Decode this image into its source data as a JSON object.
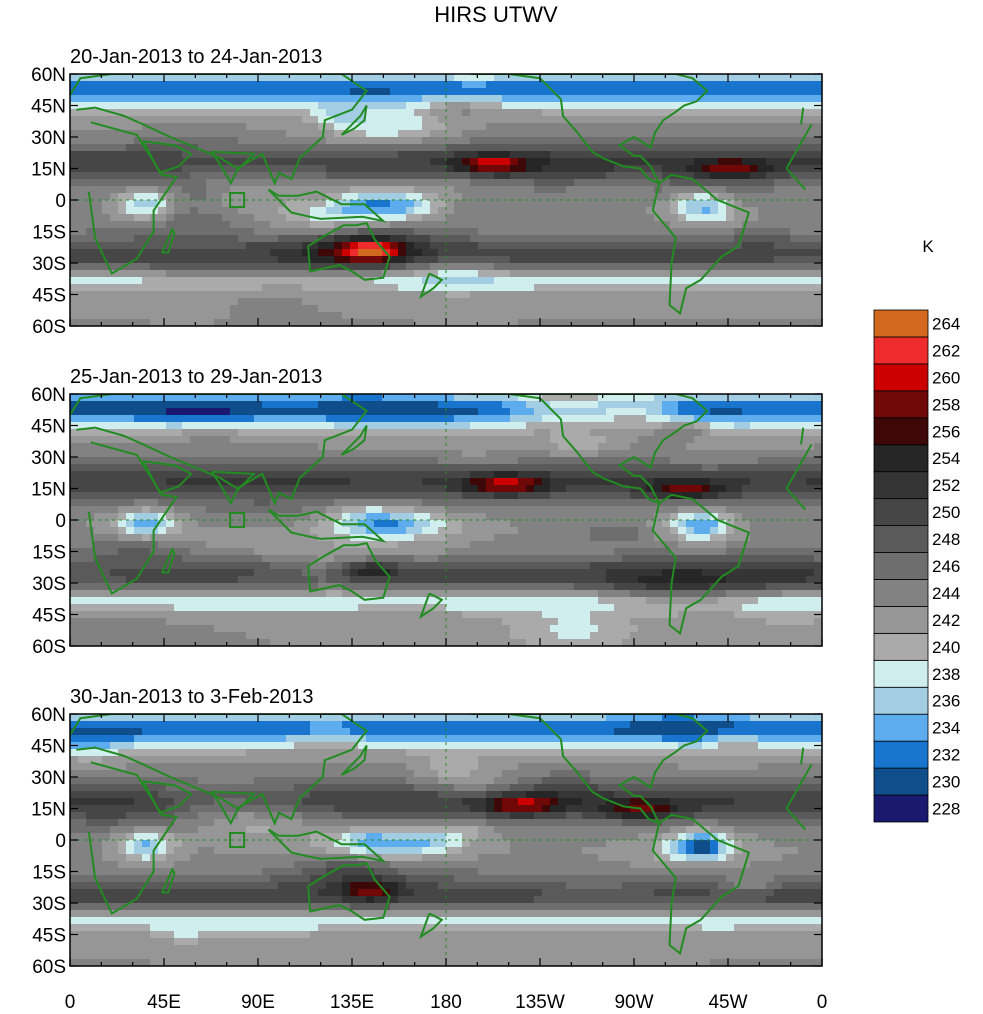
{
  "figure": {
    "title": "HIRS UTWV",
    "units": "K"
  },
  "panels": [
    {
      "label": "20-Jan-2013 to 24-Jan-2013"
    },
    {
      "label": "25-Jan-2013 to 29-Jan-2013"
    },
    {
      "label": "30-Jan-2013 to 3-Feb-2013"
    }
  ],
  "axes": {
    "lat_ticks": [
      "60N",
      "45N",
      "30N",
      "15N",
      "0",
      "15S",
      "30S",
      "45S",
      "60S"
    ],
    "lon_ticks": [
      "0",
      "45E",
      "90E",
      "135E",
      "180",
      "135W",
      "90W",
      "45W",
      "0"
    ]
  },
  "colorbar": {
    "levels": [
      228,
      230,
      232,
      234,
      236,
      238,
      240,
      242,
      244,
      246,
      248,
      250,
      252,
      254,
      256,
      258,
      260,
      262,
      264
    ],
    "label_values": [
      "228",
      "230",
      "232",
      "234",
      "236",
      "238",
      "240",
      "242",
      "244",
      "246",
      "248",
      "250",
      "252",
      "254",
      "256",
      "258",
      "260",
      "262",
      "264"
    ],
    "colors": [
      "#191970",
      "#104E8B",
      "#1874CD",
      "#5CACEE",
      "#A2CDE3",
      "#D1EEEE",
      "#AAAAAA",
      "#969696",
      "#828282",
      "#6E6E6E",
      "#5A5A5A",
      "#464646",
      "#353535",
      "#262626",
      "#3E0808",
      "#700808",
      "#CD0000",
      "#EE2C2C",
      "#D2691E"
    ]
  },
  "map_style": {
    "coast_color": "#228B22",
    "grid_style": "dashed equator and dateline"
  }
}
